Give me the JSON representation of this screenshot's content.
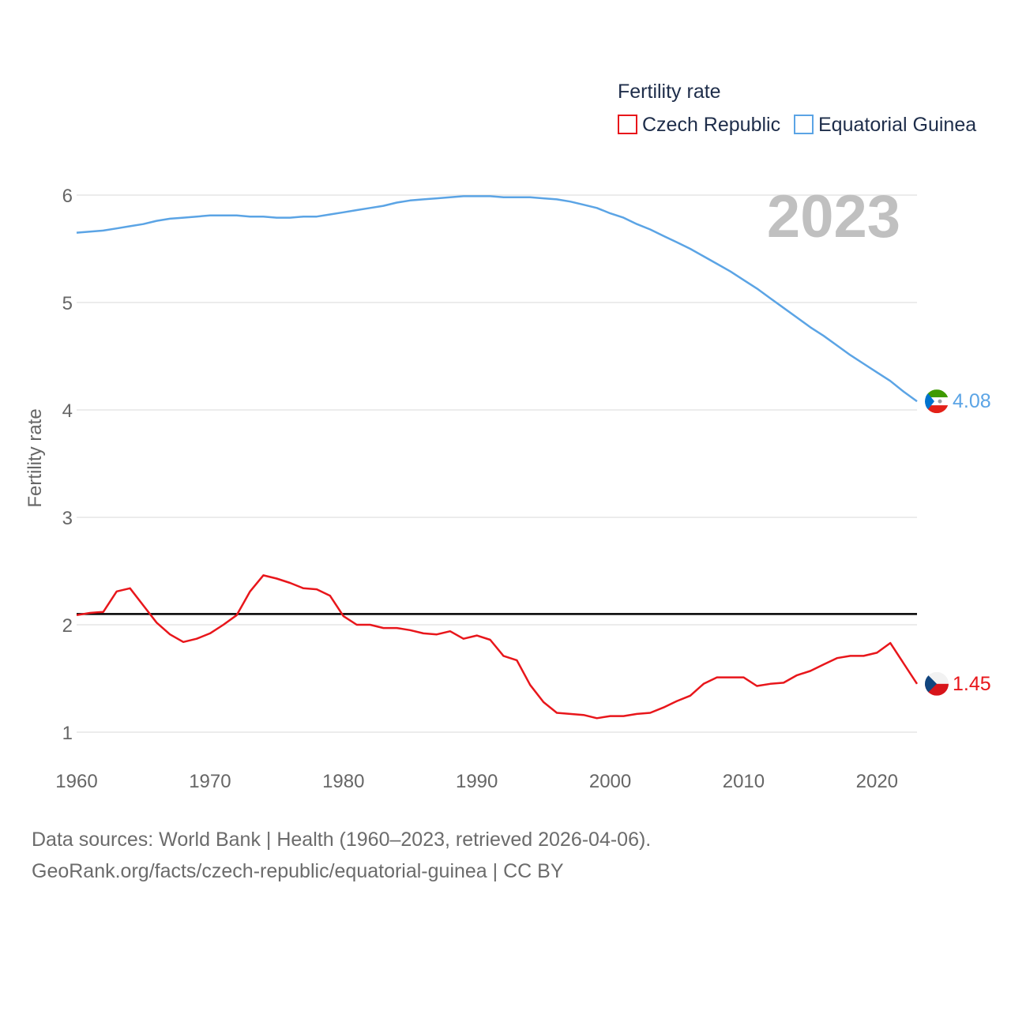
{
  "chart_data": {
    "type": "line",
    "legend_title": "Fertility rate",
    "ylabel": "Fertility rate",
    "xlabel": "",
    "year_label": "2023",
    "xlim": [
      1960,
      2023
    ],
    "ylim": [
      0.7,
      6.2
    ],
    "x_ticks": [
      1960,
      1970,
      1980,
      1990,
      2000,
      2010,
      2020
    ],
    "x_tick_labels": [
      "1960",
      "1970",
      "1980",
      "1990",
      "2000",
      "2010",
      "2020"
    ],
    "y_ticks": [
      1,
      2,
      3,
      4,
      5,
      6
    ],
    "y_tick_labels": [
      "1",
      "2",
      "3",
      "4",
      "5",
      "6"
    ],
    "reference_line": {
      "value": 2.1
    },
    "legend_position": "top-right",
    "years": [
      1960,
      1961,
      1962,
      1963,
      1964,
      1965,
      1966,
      1967,
      1968,
      1969,
      1970,
      1971,
      1972,
      1973,
      1974,
      1975,
      1976,
      1977,
      1978,
      1979,
      1980,
      1981,
      1982,
      1983,
      1984,
      1985,
      1986,
      1987,
      1988,
      1989,
      1990,
      1991,
      1992,
      1993,
      1994,
      1995,
      1996,
      1997,
      1998,
      1999,
      2000,
      2001,
      2002,
      2003,
      2004,
      2005,
      2006,
      2007,
      2008,
      2009,
      2010,
      2011,
      2012,
      2013,
      2014,
      2015,
      2016,
      2017,
      2018,
      2019,
      2020,
      2021,
      2022,
      2023
    ],
    "series": [
      {
        "name": "Czech Republic",
        "color": "#e8161b",
        "end_label": "1.45",
        "values": [
          2.09,
          2.11,
          2.12,
          2.31,
          2.34,
          2.18,
          2.02,
          1.91,
          1.84,
          1.87,
          1.92,
          2.0,
          2.09,
          2.31,
          2.46,
          2.43,
          2.39,
          2.34,
          2.33,
          2.27,
          2.08,
          2.0,
          2.0,
          1.97,
          1.97,
          1.95,
          1.92,
          1.91,
          1.94,
          1.87,
          1.9,
          1.86,
          1.71,
          1.67,
          1.44,
          1.28,
          1.18,
          1.17,
          1.16,
          1.13,
          1.15,
          1.15,
          1.17,
          1.18,
          1.23,
          1.29,
          1.34,
          1.45,
          1.51,
          1.51,
          1.51,
          1.43,
          1.45,
          1.46,
          1.53,
          1.57,
          1.63,
          1.69,
          1.71,
          1.71,
          1.74,
          1.83,
          1.64,
          1.45
        ]
      },
      {
        "name": "Equatorial Guinea",
        "color": "#5ba4e5",
        "end_label": "4.08",
        "values": [
          5.65,
          5.66,
          5.67,
          5.69,
          5.71,
          5.73,
          5.76,
          5.78,
          5.79,
          5.8,
          5.81,
          5.81,
          5.81,
          5.8,
          5.8,
          5.79,
          5.79,
          5.8,
          5.8,
          5.82,
          5.84,
          5.86,
          5.88,
          5.9,
          5.93,
          5.95,
          5.96,
          5.97,
          5.98,
          5.99,
          5.99,
          5.99,
          5.98,
          5.98,
          5.98,
          5.97,
          5.96,
          5.94,
          5.91,
          5.88,
          5.83,
          5.79,
          5.73,
          5.68,
          5.62,
          5.56,
          5.5,
          5.43,
          5.36,
          5.29,
          5.21,
          5.13,
          5.04,
          4.95,
          4.86,
          4.77,
          4.69,
          4.6,
          4.51,
          4.43,
          4.35,
          4.27,
          4.17,
          4.08
        ]
      }
    ]
  },
  "colors": {
    "text_dark": "#1e2d4a",
    "axis_text": "#666666",
    "grid": "#e6e6e6",
    "year_watermark": "#c0c0c0"
  },
  "footer": {
    "line1": "Data sources: World Bank | Health (1960–2023, retrieved 2026-04-06).",
    "line2": "GeoRank.org/facts/czech-republic/equatorial-guinea | CC BY"
  }
}
